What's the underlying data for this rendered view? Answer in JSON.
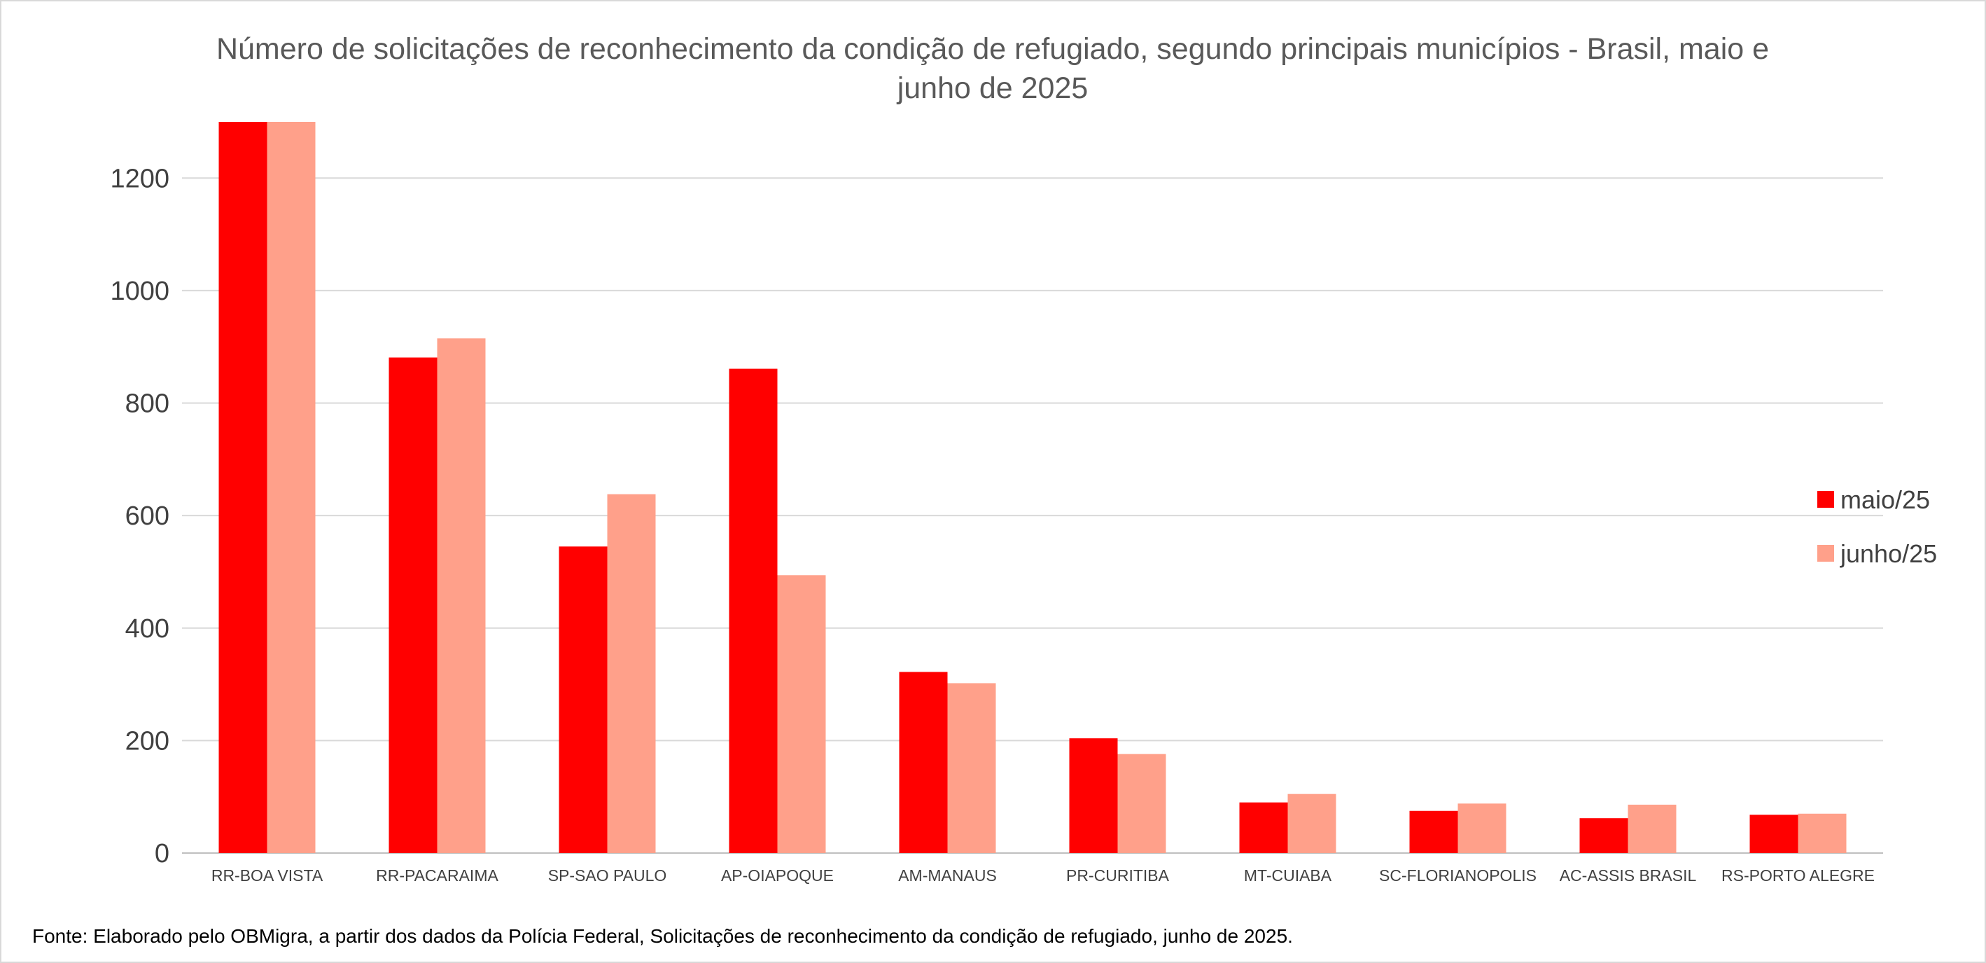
{
  "chart_data": {
    "type": "bar",
    "title_lines": [
      "Número de solicitações de reconhecimento da condição de refugiado, segundo principais municípios - Brasil, maio e",
      "junho de 2025"
    ],
    "xlabel": "",
    "ylabel": "",
    "ylim": [
      0,
      1300
    ],
    "yticks": [
      0,
      200,
      400,
      600,
      800,
      1000,
      1200
    ],
    "grid": true,
    "legend_position": "right",
    "categories": [
      "RR-BOA VISTA",
      "RR-PACARAIMA",
      "SP-SAO PAULO",
      "AP-OIAPOQUE",
      "AM-MANAUS",
      "PR-CURITIBA",
      "MT-CUIABA",
      "SC-FLORIANOPOLIS",
      "AC-ASSIS BRASIL",
      "RS-PORTO ALEGRE"
    ],
    "series": [
      {
        "name": "maio/25",
        "color": "#ff0000",
        "values": [
          1300,
          881,
          545,
          861,
          322,
          204,
          90,
          75,
          62,
          68
        ]
      },
      {
        "name": "junho/25",
        "color": "#ffa08a",
        "values": [
          1300,
          915,
          638,
          494,
          302,
          176,
          105,
          88,
          86,
          70
        ]
      }
    ],
    "source_note": "Fonte: Elaborado pelo OBMigra, a partir dos dados da Polícia Federal, Solicitações de reconhecimento da condição de refugiado, junho  de 2025."
  }
}
